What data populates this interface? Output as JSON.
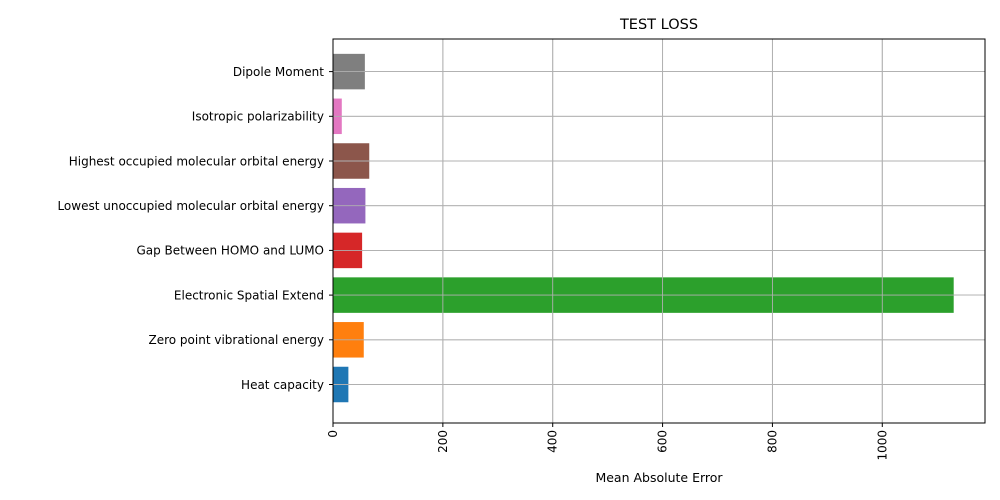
{
  "chart_data": {
    "type": "bar",
    "orientation": "horizontal",
    "title": "TEST LOSS",
    "xlabel": "Mean Absolute Error",
    "ylabel": "",
    "categories": [
      "Heat capacity",
      "Zero point vibrational energy",
      "Electronic Spatial Extend",
      "Gap Between HOMO and LUMO",
      "Lowest unoccupied molecular orbital energy",
      "Highest occupied molecular orbital energy",
      "Isotropic polarizability",
      "Dipole Moment"
    ],
    "values": [
      28,
      56,
      1130,
      53,
      59,
      66,
      16,
      58
    ],
    "colors": [
      "#1f77b4",
      "#ff7f0e",
      "#2ca02c",
      "#d62728",
      "#9467bd",
      "#8c564b",
      "#e377c2",
      "#7f7f7f"
    ],
    "xlim": [
      0,
      1187
    ],
    "xticks": [
      0,
      200,
      400,
      600,
      800,
      1000
    ],
    "xtick_rotation": 90,
    "grid": true
  }
}
